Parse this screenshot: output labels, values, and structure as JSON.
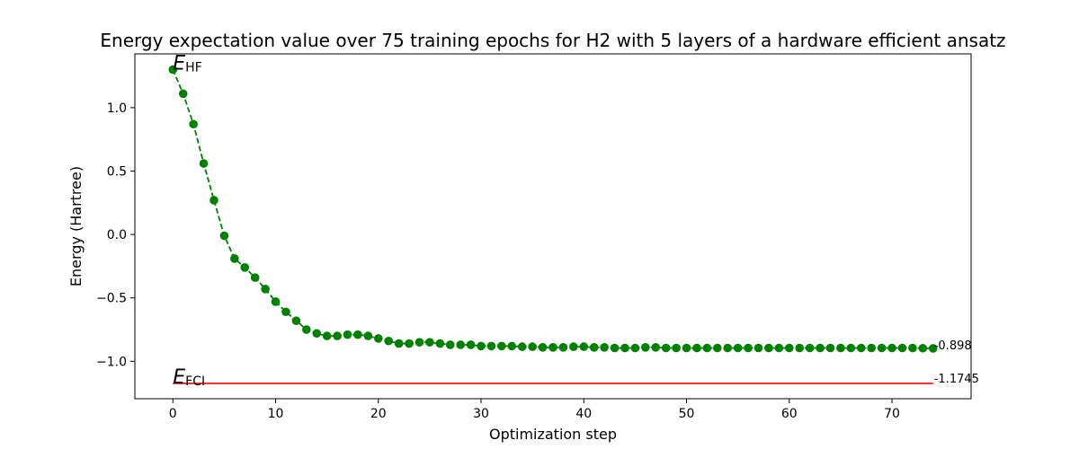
{
  "chart_data": {
    "type": "line",
    "title": "Energy expectation value over 75 training epochs for H2 with 5 layers of a hardware efficient ansatz",
    "xlabel": "Optimization step",
    "ylabel": "Energy (Hartree)",
    "xlim": [
      -3.7,
      77.7
    ],
    "ylim": [
      -1.295,
      1.424
    ],
    "x_ticks": [
      0,
      10,
      20,
      30,
      40,
      50,
      60,
      70
    ],
    "y_ticks": [
      -1.0,
      -0.5,
      0.0,
      0.5,
      1.0
    ],
    "y_tick_labels": [
      "−1.0",
      "−0.5",
      "0.0",
      "0.5",
      "1.0"
    ],
    "grid": false,
    "colors": {
      "energy": "#008000",
      "fci": "#ff0000"
    },
    "series": [
      {
        "style": "dashed-with-circle-markers",
        "x": [
          0,
          1,
          2,
          3,
          4,
          5,
          6,
          7,
          8,
          9,
          10,
          11,
          12,
          13,
          14,
          15,
          16,
          17,
          18,
          19,
          20,
          21,
          22,
          23,
          24,
          25,
          26,
          27,
          28,
          29,
          30,
          31,
          32,
          33,
          34,
          35,
          36,
          37,
          38,
          39,
          40,
          41,
          42,
          43,
          44,
          45,
          46,
          47,
          48,
          49,
          50,
          51,
          52,
          53,
          54,
          55,
          56,
          57,
          58,
          59,
          60,
          61,
          62,
          63,
          64,
          65,
          66,
          67,
          68,
          69,
          70,
          71,
          72,
          73,
          74
        ],
        "y": [
          1.3,
          1.11,
          0.87,
          0.56,
          0.27,
          -0.01,
          -0.19,
          -0.26,
          -0.34,
          -0.43,
          -0.53,
          -0.61,
          -0.68,
          -0.75,
          -0.78,
          -0.8,
          -0.8,
          -0.79,
          -0.79,
          -0.8,
          -0.82,
          -0.84,
          -0.86,
          -0.86,
          -0.85,
          -0.85,
          -0.86,
          -0.87,
          -0.87,
          -0.87,
          -0.88,
          -0.88,
          -0.88,
          -0.88,
          -0.885,
          -0.885,
          -0.89,
          -0.89,
          -0.89,
          -0.885,
          -0.885,
          -0.89,
          -0.89,
          -0.895,
          -0.895,
          -0.895,
          -0.89,
          -0.89,
          -0.895,
          -0.895,
          -0.895,
          -0.895,
          -0.895,
          -0.895,
          -0.895,
          -0.895,
          -0.895,
          -0.895,
          -0.895,
          -0.895,
          -0.895,
          -0.895,
          -0.895,
          -0.895,
          -0.895,
          -0.895,
          -0.895,
          -0.895,
          -0.895,
          -0.895,
          -0.895,
          -0.895,
          -0.895,
          -0.897,
          -0.898
        ]
      },
      {
        "style": "solid",
        "x": [
          0,
          74
        ],
        "y": [
          -1.1745,
          -1.1745
        ]
      }
    ],
    "annotations": {
      "hf_label": {
        "main": "E",
        "sub": "HF",
        "x": 0,
        "y": 1.3
      },
      "fci_label": {
        "main": "E",
        "sub": "FCI",
        "x": 0,
        "y": -1.1745
      },
      "final_value": {
        "text": "-0.898",
        "x": 74,
        "y": -0.898
      },
      "fci_value": {
        "text": "-1.1745",
        "x": 74,
        "y": -1.1745
      }
    }
  }
}
